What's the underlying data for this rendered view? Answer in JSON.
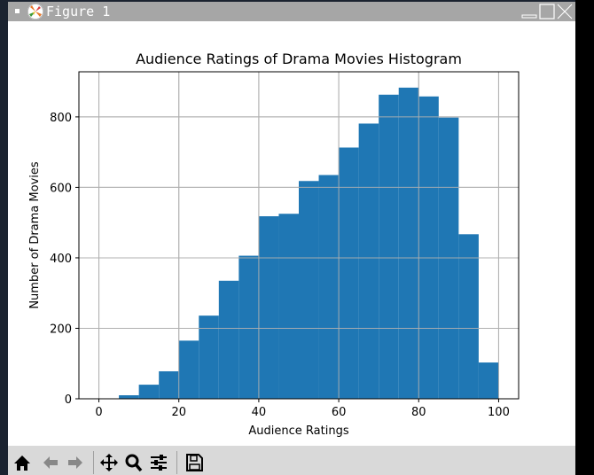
{
  "window": {
    "title": "Figure 1",
    "controls": [
      "minimize",
      "maximize",
      "close"
    ]
  },
  "toolbar": {
    "buttons": [
      {
        "name": "home",
        "icon": "home-icon"
      },
      {
        "name": "back",
        "icon": "arrow-left-icon"
      },
      {
        "name": "forward",
        "icon": "arrow-right-icon"
      },
      {
        "name": "pan",
        "icon": "move-icon"
      },
      {
        "name": "zoom",
        "icon": "magnifier-icon"
      },
      {
        "name": "configure-subplots",
        "icon": "sliders-icon"
      },
      {
        "name": "save",
        "icon": "floppy-disk-icon"
      }
    ]
  },
  "colors": {
    "bar": "#1f77b4",
    "grid": "#b0b0b0",
    "titlebar": "#a6a6a6",
    "toolbar": "#d9d9d9"
  },
  "chart_data": {
    "type": "bar",
    "title": "Audience Ratings of Drama Movies Histogram",
    "xlabel": "Audience Ratings",
    "ylabel": "Number of Drama Movies",
    "bin_edges": [
      0,
      5,
      10,
      15,
      20,
      25,
      30,
      35,
      40,
      45,
      50,
      55,
      60,
      65,
      70,
      75,
      80,
      85,
      90,
      95,
      100
    ],
    "categories": [
      "0-5",
      "5-10",
      "10-15",
      "15-20",
      "20-25",
      "25-30",
      "30-35",
      "35-40",
      "40-45",
      "45-50",
      "50-55",
      "55-60",
      "60-65",
      "65-70",
      "70-75",
      "75-80",
      "80-85",
      "85-90",
      "90-95",
      "95-100"
    ],
    "values": [
      0,
      10,
      40,
      78,
      165,
      236,
      335,
      406,
      518,
      525,
      618,
      635,
      713,
      781,
      863,
      883,
      858,
      798,
      467,
      103
    ],
    "xlim": [
      -5,
      105
    ],
    "ylim": [
      0,
      928
    ],
    "xticks": [
      0,
      20,
      40,
      60,
      80,
      100
    ],
    "yticks": [
      0,
      200,
      400,
      600,
      800
    ],
    "grid": true,
    "legend": null
  }
}
